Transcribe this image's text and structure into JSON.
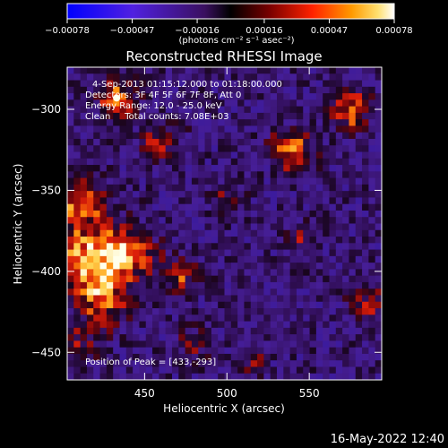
{
  "chart_data": {
    "type": "heatmap",
    "title": "Reconstructed RHESSI Image",
    "xlabel": "Heliocentric X (arcsec)",
    "ylabel": "Heliocentric Y (arcsec)",
    "xlim": [
      403,
      594
    ],
    "ylim": [
      -467,
      -274
    ],
    "x_ticks": [
      450,
      500,
      550
    ],
    "x_tick_labels": [
      "450",
      "500",
      "550"
    ],
    "y_ticks": [
      -450,
      -400,
      -350,
      -300
    ],
    "y_tick_labels": [
      "−450",
      "−400",
      "−350",
      "−300"
    ],
    "colorbar": {
      "min": -0.00078,
      "max": 0.00078,
      "ticks": [
        -0.00078,
        -0.00047,
        -0.00016,
        0.00016,
        0.00047,
        0.00078
      ],
      "tick_labels": [
        "−0.00078",
        "−0.00047",
        "−0.00016",
        "0.00016",
        "0.00047",
        "0.00078"
      ],
      "unit_label": "(photons cm⁻² s⁻¹ asec⁻²)"
    },
    "annotations": [
      "4-Sep-2013 01:15:12.000 to 01:18:00.000",
      "Detectors: 3F 4F 5F 6F 7F 8F, Att 0",
      "Energy Range: 12.0 - 25.0 keV",
      "Clean     Total counts: 7.08E+03"
    ],
    "peak_label": "Position of Peak = [433,-293]",
    "peak": [
      433,
      -293
    ],
    "grid": false,
    "emission_regions": [
      {
        "x": 418,
        "y": -395,
        "r": 22,
        "a": 0.85
      },
      {
        "x": 440,
        "y": -390,
        "r": 15,
        "a": 0.7
      },
      {
        "x": 410,
        "y": -360,
        "r": 18,
        "a": 0.6
      },
      {
        "x": 425,
        "y": -420,
        "r": 14,
        "a": 0.6
      },
      {
        "x": 412,
        "y": -445,
        "r": 10,
        "a": 0.4
      },
      {
        "x": 433,
        "y": -293,
        "r": 11,
        "a": 0.75
      },
      {
        "x": 460,
        "y": -320,
        "r": 12,
        "a": 0.5
      },
      {
        "x": 472,
        "y": -400,
        "r": 10,
        "a": 0.55
      },
      {
        "x": 480,
        "y": -445,
        "r": 9,
        "a": 0.35
      },
      {
        "x": 540,
        "y": -325,
        "r": 12,
        "a": 0.7
      },
      {
        "x": 575,
        "y": -300,
        "r": 12,
        "a": 0.65
      },
      {
        "x": 585,
        "y": -420,
        "r": 10,
        "a": 0.5
      },
      {
        "x": 545,
        "y": -380,
        "r": 9,
        "a": 0.4
      },
      {
        "x": 515,
        "y": -455,
        "r": 8,
        "a": 0.35
      },
      {
        "x": 500,
        "y": -355,
        "r": 8,
        "a": 0.3
      }
    ]
  },
  "footer": {
    "timestamp": "16-May-2022 12:40"
  }
}
